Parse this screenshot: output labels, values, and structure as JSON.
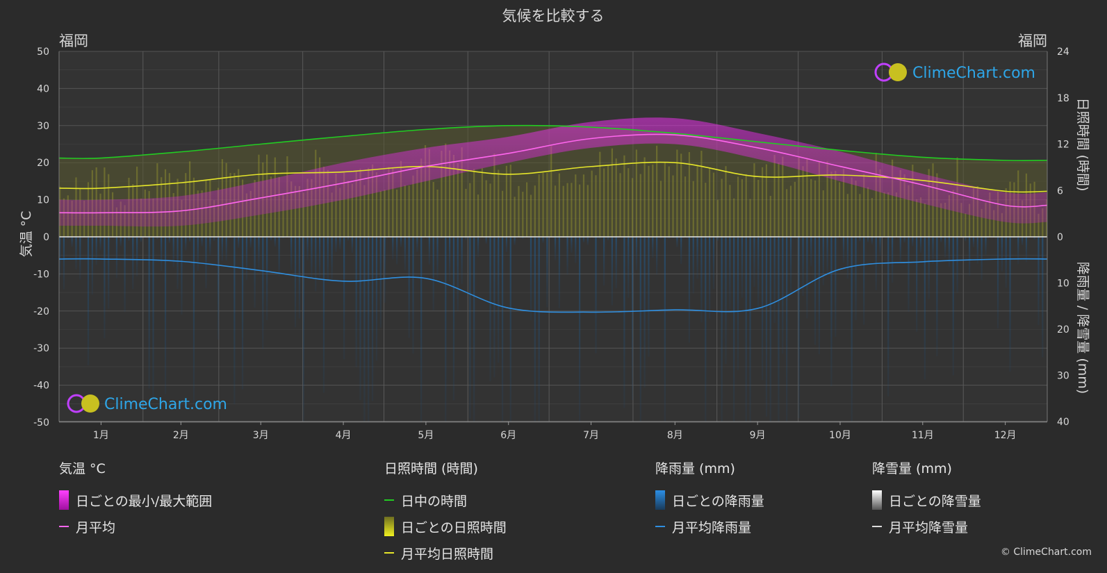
{
  "chart_data": {
    "type": "area",
    "title": "気候を比較する",
    "location_left": "福岡",
    "location_right": "福岡",
    "months": [
      "1月",
      "2月",
      "3月",
      "4月",
      "5月",
      "6月",
      "7月",
      "8月",
      "9月",
      "10月",
      "11月",
      "12月"
    ],
    "y_left": {
      "label": "気温 °C",
      "range": [
        -50,
        50
      ],
      "ticks": [
        50,
        40,
        30,
        20,
        10,
        0,
        -10,
        -20,
        -30,
        -40,
        -50
      ]
    },
    "y_right_top": {
      "label": "日照時間 (時間)",
      "range": [
        0,
        24
      ],
      "ticks": [
        24,
        18,
        12,
        6,
        0
      ]
    },
    "y_right_bottom": {
      "label": "降雨量 / 降雪量 (mm)",
      "range": [
        0,
        40
      ],
      "ticks": [
        10,
        20,
        30,
        40
      ]
    },
    "series": [
      {
        "name": "日中の時間",
        "unit": "時間",
        "color": "#22cc22",
        "values": [
          10.2,
          11.0,
          12.0,
          13.0,
          13.9,
          14.4,
          14.2,
          13.4,
          12.3,
          11.2,
          10.3,
          9.9
        ]
      },
      {
        "name": "月平均日照時間",
        "unit": "時間",
        "color": "#e6e62a",
        "values": [
          6.3,
          7.0,
          8.1,
          8.4,
          9.1,
          8.1,
          9.1,
          9.6,
          7.8,
          8.0,
          7.3,
          5.9
        ]
      },
      {
        "name": "月平均",
        "unit": "°C",
        "color": "#ff66ee",
        "values": [
          6.5,
          7.0,
          10.5,
          14.5,
          19.0,
          22.5,
          26.5,
          27.5,
          24.0,
          19.0,
          14.0,
          8.5
        ]
      },
      {
        "name": "月平均降雨量",
        "unit": "mm",
        "color": "#2f8fe0",
        "values": [
          4.8,
          5.3,
          7.3,
          9.6,
          9.0,
          15.4,
          16.3,
          15.8,
          15.5,
          7.0,
          5.4,
          4.8
        ]
      },
      {
        "name": "月平均降雪量",
        "unit": "mm",
        "color": "#dddddd",
        "values": [
          0,
          0,
          0,
          0,
          0,
          0,
          0,
          0,
          0,
          0,
          0,
          0
        ]
      }
    ],
    "daily_range_max": [
      10,
      11,
      15,
      20,
      24,
      27,
      31,
      32,
      28,
      23,
      17,
      12
    ],
    "daily_range_min": [
      3,
      3,
      6,
      10,
      15,
      20,
      24,
      25,
      21,
      15,
      9,
      4
    ],
    "grid": true,
    "colors": {
      "background": "#2b2b2b",
      "range": "#e020e0",
      "sunshine_daily": "#b8b830",
      "rain_daily": "#1a6fb8"
    }
  },
  "brand": {
    "name": "ClimeChart.com",
    "copyright": "© ClimeChart.com"
  },
  "legend": {
    "temperature": {
      "title": "気温 °C",
      "items": [
        "日ごとの最小/最大範囲",
        "月平均"
      ]
    },
    "sunshine": {
      "title": "日照時間 (時間)",
      "items": [
        "日中の時間",
        "日ごとの日照時間",
        "月平均日照時間"
      ]
    },
    "rain": {
      "title": "降雨量 (mm)",
      "items": [
        "日ごとの降雨量",
        "月平均降雨量"
      ]
    },
    "snow": {
      "title": "降雪量 (mm)",
      "items": [
        "日ごとの降雪量",
        "月平均降雪量"
      ]
    }
  }
}
